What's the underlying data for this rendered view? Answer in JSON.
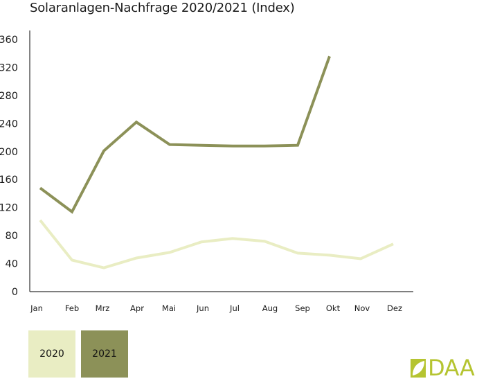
{
  "title": "Solaranlagen-Nachfrage 2020/2021 (Index)",
  "colors": {
    "series_2020": "#e9edc3",
    "series_2021": "#8c9158",
    "axis": "#333333",
    "logo": "#b5c431"
  },
  "legend": {
    "items": [
      {
        "label": "2020",
        "color": "#e9edc3"
      },
      {
        "label": "2021",
        "color": "#8c9158"
      }
    ]
  },
  "logo": {
    "text": "DAA",
    "icon": "leaf-square-icon"
  },
  "chart_data": {
    "type": "line",
    "title": "Solaranlagen-Nachfrage 2020/2021 (Index)",
    "xlabel": "",
    "ylabel": "",
    "categories": [
      "Jan",
      "Feb",
      "Mrz",
      "Apr",
      "Mai",
      "Jun",
      "Jul",
      "Aug",
      "Sep",
      "Okt",
      "Nov",
      "Dez"
    ],
    "yticks": [
      0,
      40,
      80,
      120,
      160,
      200,
      240,
      280,
      320,
      360
    ],
    "ylim": [
      0,
      360
    ],
    "grid": false,
    "legend_position": "bottom-left",
    "series": [
      {
        "name": "2020",
        "color": "#e9edc3",
        "values": [
          102,
          45,
          34,
          48,
          56,
          71,
          76,
          72,
          55,
          52,
          47,
          68
        ]
      },
      {
        "name": "2021",
        "color": "#8c9158",
        "values": [
          148,
          114,
          201,
          242,
          210,
          209,
          208,
          208,
          209,
          336,
          null,
          null
        ]
      }
    ]
  }
}
